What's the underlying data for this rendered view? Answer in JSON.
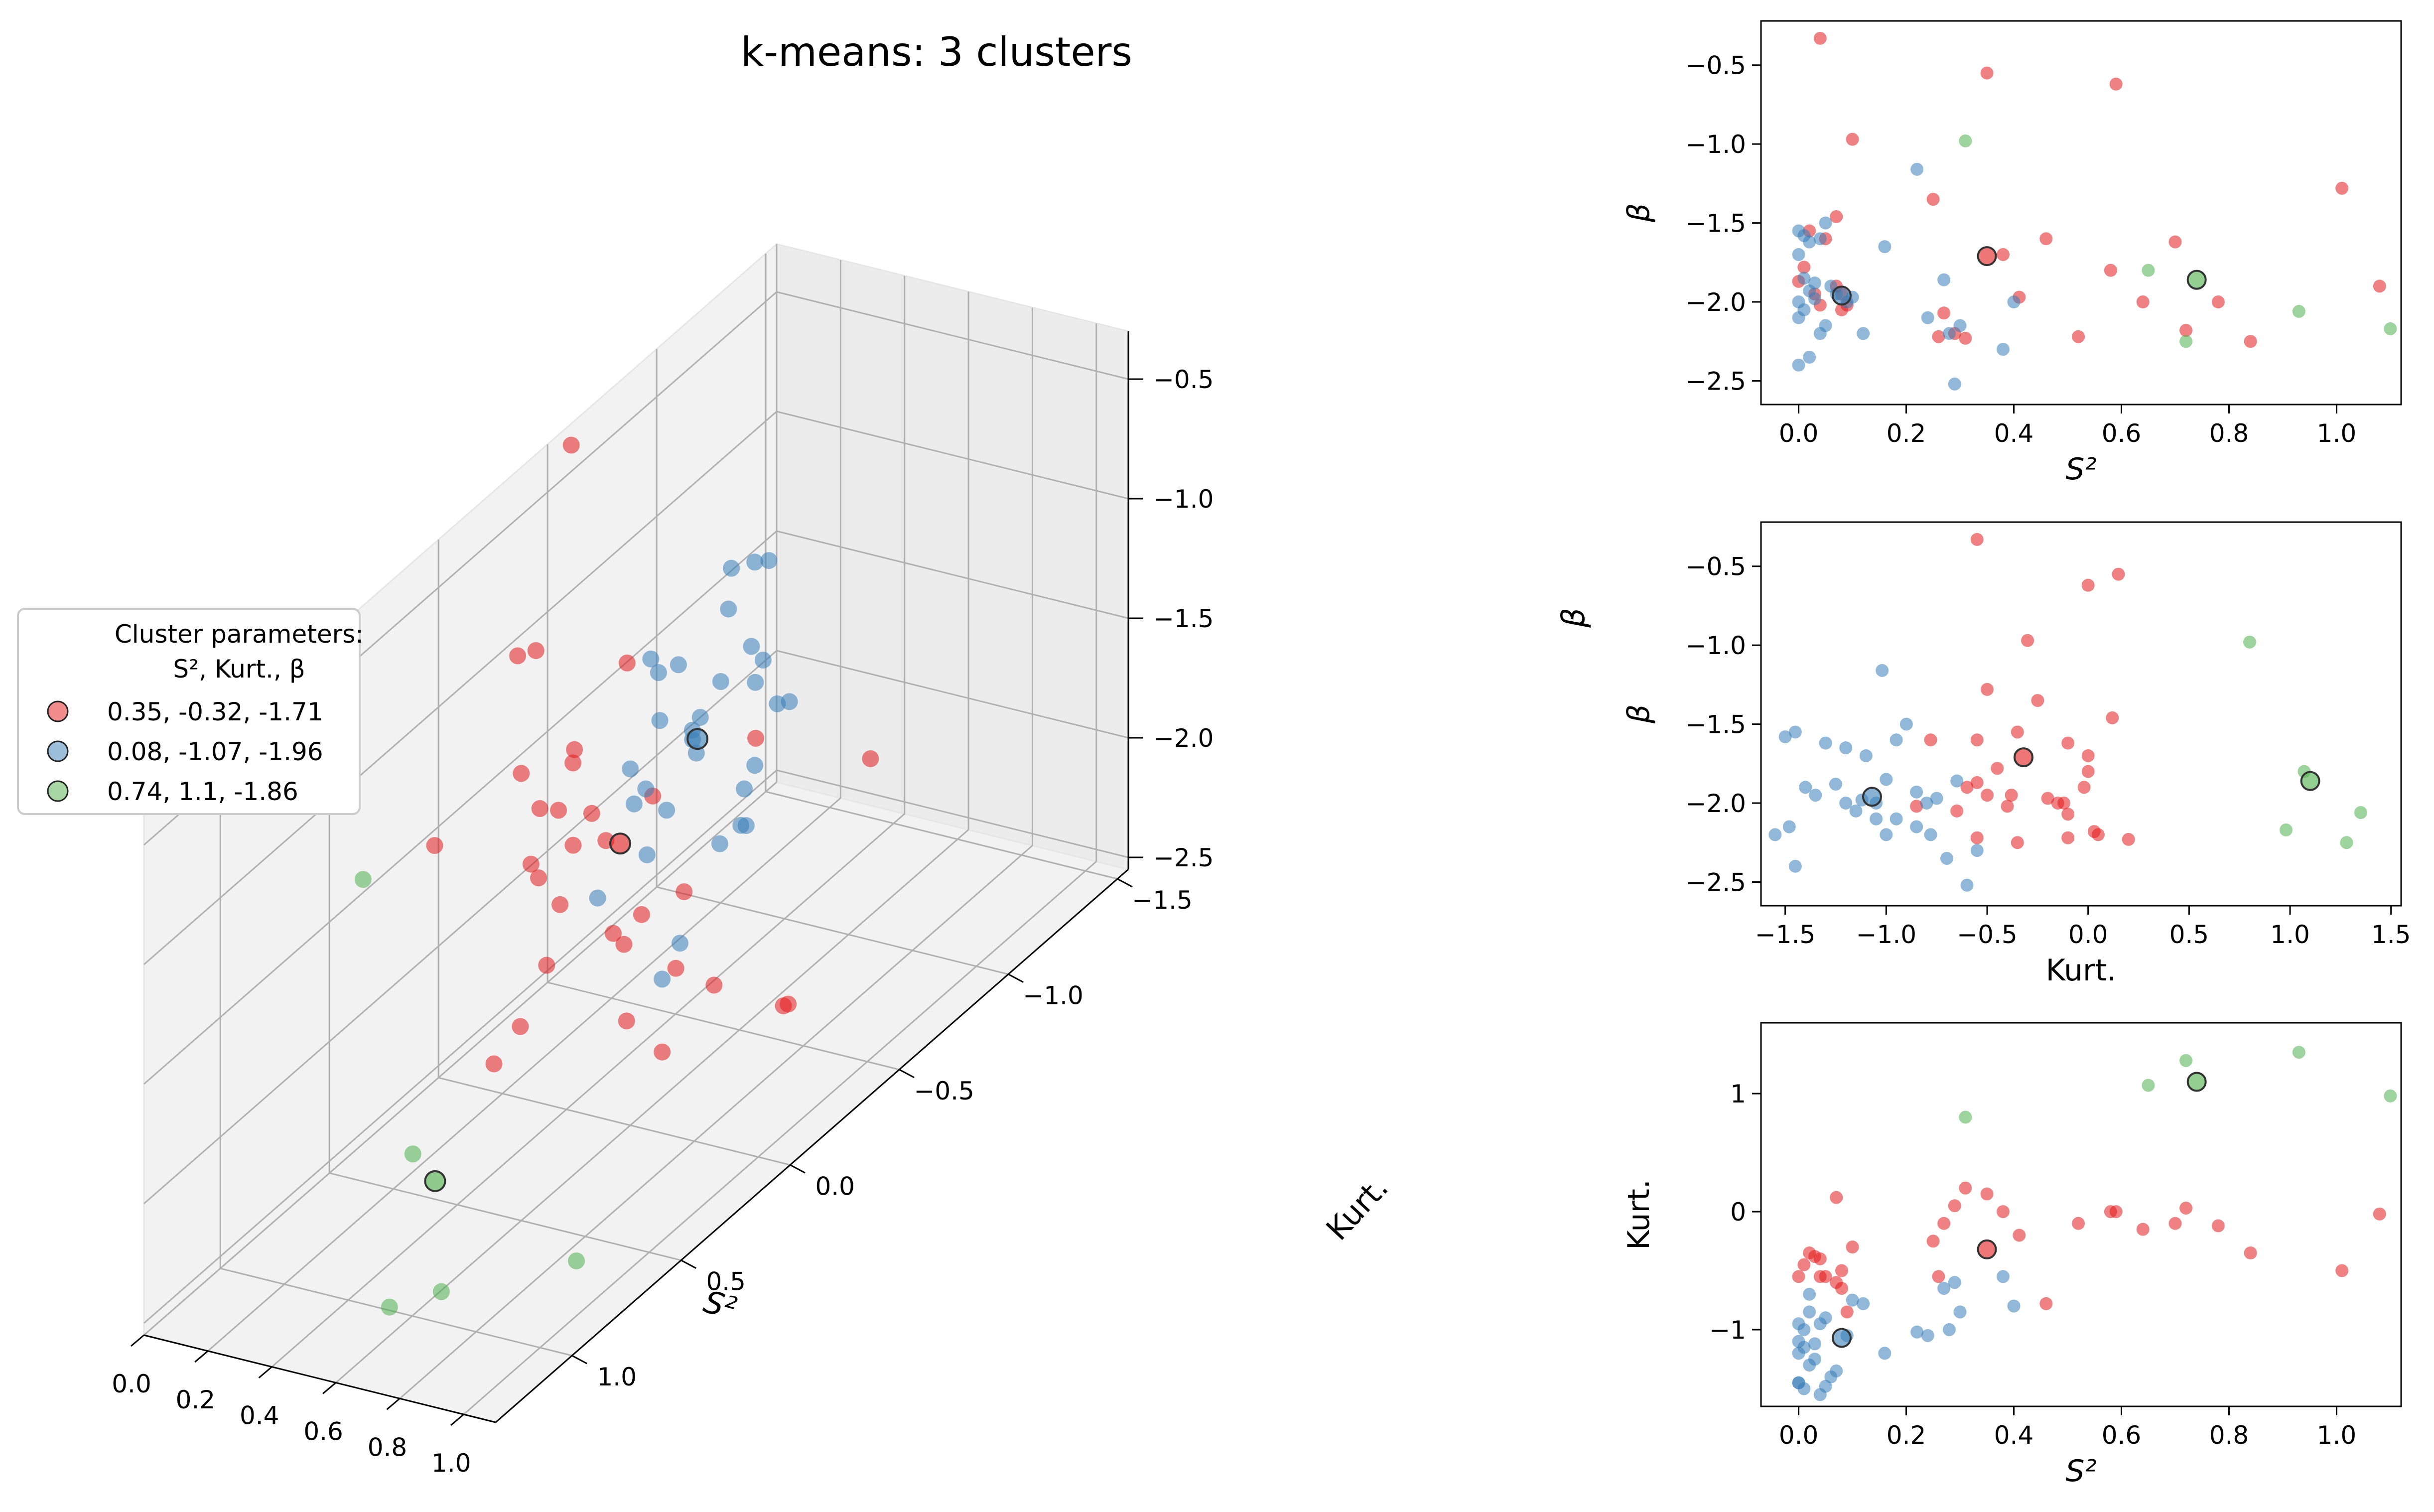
{
  "title": "k-means: 3 clusters",
  "colors": {
    "c0": "#e41a1c",
    "c1": "#377eb8",
    "c2": "#4daf4a"
  },
  "legend": {
    "title_line1": "Cluster parameters:",
    "title_line2": "S², Kurt., β",
    "entries": [
      "0.35, -0.32, -1.71",
      "0.08, -1.07, -1.96",
      "0.74, 1.1, -1.86"
    ]
  },
  "chart_data": [
    {
      "type": "scatter",
      "projection": "3d",
      "xlabel": "S²",
      "ylabel": "Kurt.",
      "zlabel": "β",
      "xlim": [
        0,
        1.1
      ],
      "ylim": [
        -1.55,
        1.35
      ],
      "zlim": [
        -2.55,
        -0.3
      ],
      "xticks": [
        "0.0",
        "0.2",
        "0.4",
        "0.6",
        "0.8",
        "1.0"
      ],
      "yticks": [
        "−1.5",
        "−1.0",
        "−0.5",
        "0.0",
        "0.5",
        "1.0"
      ],
      "zticks": [
        "−2.5",
        "−2.0",
        "−1.5",
        "−1.0",
        "−0.5"
      ]
    },
    {
      "type": "scatter",
      "xlabel": "S²",
      "ylabel": "β",
      "xlim": [
        -0.07,
        1.12
      ],
      "ylim": [
        -2.65,
        -0.22
      ],
      "xticks": [
        "0.0",
        "0.2",
        "0.4",
        "0.6",
        "0.8",
        "1.0"
      ],
      "yticks": [
        "−2.5",
        "−2.0",
        "−1.5",
        "−1.0",
        "−0.5"
      ]
    },
    {
      "type": "scatter",
      "xlabel": "Kurt.",
      "ylabel": "β",
      "xlim": [
        -1.62,
        1.55
      ],
      "ylim": [
        -2.65,
        -0.22
      ],
      "xticks": [
        "−1.5",
        "−1.0",
        "−0.5",
        "0.0",
        "0.5",
        "1.0",
        "1.5"
      ],
      "yticks": [
        "−2.5",
        "−2.0",
        "−1.5",
        "−1.0",
        "−0.5"
      ]
    },
    {
      "type": "scatter",
      "xlabel": "S²",
      "ylabel": "Kurt.",
      "xlim": [
        -0.07,
        1.12
      ],
      "ylim": [
        -1.65,
        1.6
      ],
      "xticks": [
        "0.0",
        "0.2",
        "0.4",
        "0.6",
        "0.8",
        "1.0"
      ],
      "yticks": [
        "−1",
        "0",
        "1"
      ]
    }
  ],
  "points": {
    "series": [
      {
        "name": "0.35, -0.32, -1.71",
        "centroid": [
          0.35,
          -0.32,
          -1.71
        ],
        "x": [
          0.04,
          0.35,
          0.59,
          1.01,
          0.1,
          0.25,
          0.07,
          0.02,
          0.05,
          0.08,
          0.04,
          0.0,
          0.01,
          0.07,
          0.08,
          0.38,
          0.46,
          0.58,
          0.7,
          0.03,
          0.41,
          0.27,
          0.64,
          0.78,
          1.08,
          0.09,
          0.29,
          0.52,
          0.72,
          0.31,
          0.84,
          0.26
        ],
        "y": [
          -0.55,
          0.15,
          0.0,
          -0.5,
          -0.3,
          -0.25,
          0.12,
          -0.35,
          -0.55,
          -0.5,
          -0.4,
          -0.55,
          -0.45,
          -0.6,
          -0.65,
          0.0,
          -0.78,
          0.0,
          -0.1,
          -0.38,
          -0.2,
          -0.1,
          -0.15,
          -0.12,
          -0.02,
          -0.85,
          0.05,
          -0.1,
          0.03,
          0.2,
          -0.35,
          -0.55
        ],
        "z": [
          -0.33,
          -0.55,
          -0.62,
          -1.28,
          -0.97,
          -1.35,
          -1.46,
          -1.55,
          -1.6,
          -1.95,
          -2.02,
          -1.87,
          -1.78,
          -1.9,
          -2.05,
          -1.7,
          -1.6,
          -1.8,
          -1.62,
          -1.95,
          -1.97,
          -2.07,
          -2.0,
          -2.0,
          -1.9,
          -2.02,
          -2.2,
          -2.22,
          -2.18,
          -2.23,
          -2.25,
          -2.22
        ]
      },
      {
        "name": "0.08, -1.07, -1.96",
        "centroid": [
          0.08,
          -1.07,
          -1.96
        ],
        "x": [
          0.22,
          0.16,
          0.0,
          0.01,
          0.02,
          0.0,
          0.05,
          0.04,
          0.06,
          0.07,
          0.0,
          0.01,
          0.03,
          0.02,
          0.09,
          0.1,
          0.04,
          0.05,
          0.0,
          0.01,
          0.03,
          0.27,
          0.3,
          0.4,
          0.24,
          0.28,
          0.12,
          0.02,
          0.0,
          0.29,
          0.38
        ],
        "y": [
          -1.02,
          -1.2,
          -1.45,
          -1.5,
          -1.3,
          -1.1,
          -0.9,
          -0.95,
          -1.4,
          -1.35,
          -1.2,
          -1.0,
          -1.25,
          -0.85,
          -1.05,
          -0.75,
          -1.55,
          -1.48,
          -0.95,
          -1.15,
          -1.12,
          -0.65,
          -0.85,
          -0.8,
          -1.05,
          -1.0,
          -0.78,
          -0.7,
          -1.45,
          -0.6,
          -0.55
        ],
        "z": [
          -1.16,
          -1.65,
          -1.55,
          -1.58,
          -1.62,
          -1.7,
          -1.5,
          -1.6,
          -1.9,
          -1.95,
          -2.0,
          -1.85,
          -1.88,
          -1.93,
          -2.0,
          -1.97,
          -2.2,
          -2.15,
          -2.1,
          -2.05,
          -1.98,
          -1.86,
          -2.15,
          -2.0,
          -2.1,
          -2.2,
          -2.2,
          -2.35,
          -2.4,
          -2.52,
          -2.3
        ]
      },
      {
        "name": "0.74, 1.1, -1.86",
        "centroid": [
          0.74,
          1.1,
          -1.86
        ],
        "x": [
          0.31,
          0.65,
          0.72,
          0.93,
          1.1
        ],
        "y": [
          0.8,
          1.07,
          1.28,
          1.35,
          0.98
        ],
        "z": [
          -0.98,
          -1.8,
          -2.25,
          -2.06,
          -2.17
        ]
      }
    ]
  }
}
